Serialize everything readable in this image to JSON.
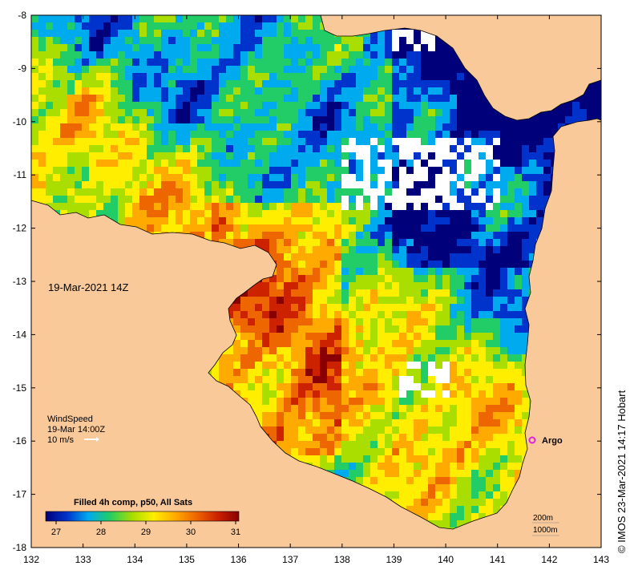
{
  "map": {
    "timestamp": "19-Mar-2021 14Z",
    "wind": {
      "title": "WindSpeed",
      "time": "19-Mar 14:00Z",
      "scale_text": "10 m/s"
    },
    "argo_label": "Argo",
    "colorbar": {
      "title": "Filled 4h comp, p50, All Sats",
      "ticks": [
        "27",
        "28",
        "29",
        "30",
        "31"
      ],
      "colors": [
        "#00007a",
        "#0033cc",
        "#00aaee",
        "#22cc66",
        "#aadd00",
        "#ffee00",
        "#ffaa00",
        "#ee6600",
        "#cc2200",
        "#880000"
      ]
    },
    "contours": {
      "depth_200": "200m",
      "depth_1000": "1000m"
    },
    "x_ticks": [
      "132",
      "133",
      "134",
      "135",
      "136",
      "137",
      "138",
      "139",
      "140",
      "141",
      "142",
      "143"
    ],
    "y_ticks": [
      "-8",
      "-9",
      "-10",
      "-11",
      "-12",
      "-13",
      "-14",
      "-15",
      "-16",
      "-17",
      "-18"
    ],
    "credit": "© IMOS 23-Mar-2021 14:17 Hobart",
    "colors": {
      "land": "#f9c99a",
      "no_data": "#ffffff",
      "argo_marker": "#dd22dd"
    }
  }
}
